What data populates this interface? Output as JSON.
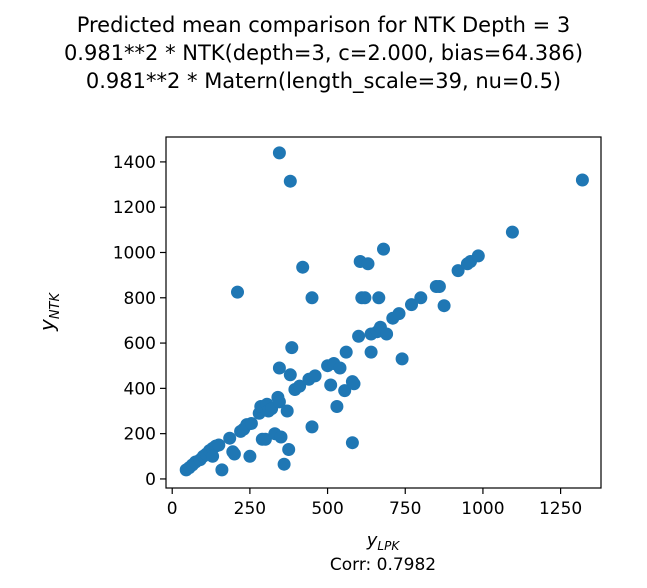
{
  "chart_data": {
    "type": "scatter",
    "title_lines": [
      "Predicted mean comparison for NTK Depth = 3",
      "0.981**2 * NTK(depth=3, c=2.000, bias=64.386)",
      "0.981**2 * Matern(length_scale=39, nu=0.5)"
    ],
    "xlabel_base": "y",
    "xlabel_sub": "LPK",
    "ylabel_base": "y",
    "ylabel_sub": "NTK",
    "caption": "Corr: 0.7982",
    "xlim": [
      -20,
      1380
    ],
    "ylim": [
      -40,
      1510
    ],
    "x_ticks": [
      0,
      250,
      500,
      750,
      1000,
      1250
    ],
    "y_ticks": [
      0,
      200,
      400,
      600,
      800,
      1000,
      1200,
      1400
    ],
    "marker_color": "#1f77b4",
    "points": [
      [
        45,
        40
      ],
      [
        55,
        50
      ],
      [
        65,
        62
      ],
      [
        75,
        75
      ],
      [
        90,
        85
      ],
      [
        100,
        100
      ],
      [
        110,
        110
      ],
      [
        120,
        125
      ],
      [
        130,
        135
      ],
      [
        140,
        145
      ],
      [
        150,
        150
      ],
      [
        130,
        100
      ],
      [
        160,
        40
      ],
      [
        185,
        180
      ],
      [
        195,
        120
      ],
      [
        200,
        110
      ],
      [
        210,
        825
      ],
      [
        220,
        210
      ],
      [
        230,
        220
      ],
      [
        240,
        240
      ],
      [
        250,
        100
      ],
      [
        255,
        245
      ],
      [
        280,
        290
      ],
      [
        285,
        320
      ],
      [
        290,
        175
      ],
      [
        300,
        175
      ],
      [
        305,
        330
      ],
      [
        310,
        300
      ],
      [
        320,
        310
      ],
      [
        330,
        200
      ],
      [
        340,
        360
      ],
      [
        345,
        340
      ],
      [
        345,
        490
      ],
      [
        350,
        185
      ],
      [
        345,
        1440
      ],
      [
        360,
        65
      ],
      [
        370,
        300
      ],
      [
        375,
        130
      ],
      [
        380,
        460
      ],
      [
        385,
        580
      ],
      [
        395,
        395
      ],
      [
        410,
        410
      ],
      [
        420,
        935
      ],
      [
        440,
        440
      ],
      [
        450,
        800
      ],
      [
        450,
        230
      ],
      [
        460,
        455
      ],
      [
        500,
        500
      ],
      [
        510,
        415
      ],
      [
        520,
        510
      ],
      [
        530,
        320
      ],
      [
        540,
        490
      ],
      [
        555,
        390
      ],
      [
        560,
        560
      ],
      [
        580,
        160
      ],
      [
        580,
        430
      ],
      [
        585,
        420
      ],
      [
        600,
        630
      ],
      [
        605,
        960
      ],
      [
        610,
        800
      ],
      [
        620,
        800
      ],
      [
        630,
        950
      ],
      [
        640,
        560
      ],
      [
        640,
        640
      ],
      [
        660,
        650
      ],
      [
        665,
        800
      ],
      [
        670,
        670
      ],
      [
        680,
        1015
      ],
      [
        690,
        640
      ],
      [
        710,
        710
      ],
      [
        730,
        730
      ],
      [
        740,
        530
      ],
      [
        770,
        770
      ],
      [
        800,
        800
      ],
      [
        850,
        850
      ],
      [
        860,
        850
      ],
      [
        875,
        765
      ],
      [
        920,
        920
      ],
      [
        950,
        950
      ],
      [
        960,
        960
      ],
      [
        985,
        985
      ],
      [
        1095,
        1090
      ],
      [
        1320,
        1320
      ],
      [
        380,
        1315
      ]
    ]
  }
}
